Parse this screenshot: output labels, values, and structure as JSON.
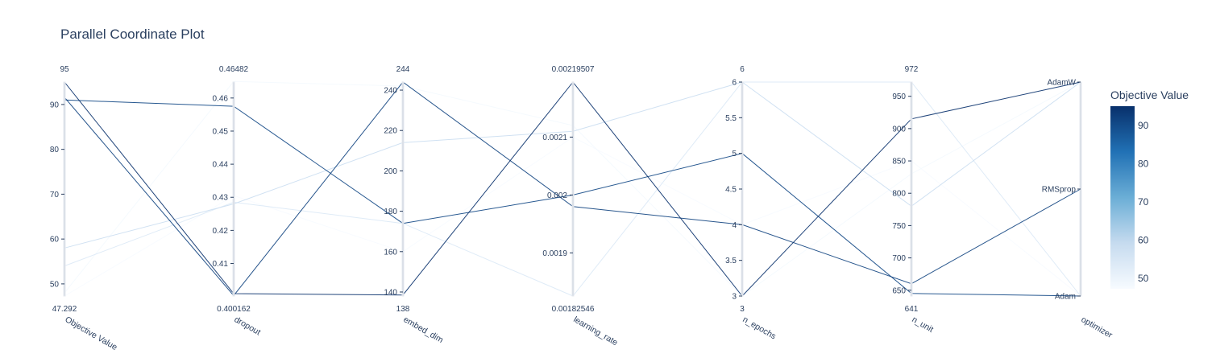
{
  "chart_data": {
    "type": "parallel_coordinates",
    "title": "Parallel Coordinate Plot",
    "colorbar": {
      "title": "Objective Value",
      "range": [
        47.292,
        95
      ],
      "ticks": [
        "50",
        "60",
        "70",
        "80",
        "90"
      ],
      "tick_values": [
        50,
        60,
        70,
        80,
        90
      ],
      "colors": [
        "#f7fbff",
        "#c6dbef",
        "#6baed6",
        "#2171b5",
        "#08306b"
      ]
    },
    "dimensions": [
      {
        "label": "Objective Value",
        "range": [
          47.292,
          95
        ],
        "min_label": "47.292",
        "max_label": "95",
        "ticks": [
          [
            "50",
            50
          ],
          [
            "60",
            60
          ],
          [
            "70",
            70
          ],
          [
            "80",
            80
          ],
          [
            "90",
            90
          ]
        ]
      },
      {
        "label": "dropout",
        "range": [
          0.400162,
          0.46482
        ],
        "min_label": "0.400162",
        "max_label": "0.46482",
        "ticks": [
          [
            "0.41",
            0.41
          ],
          [
            "0.42",
            0.42
          ],
          [
            "0.43",
            0.43
          ],
          [
            "0.44",
            0.44
          ],
          [
            "0.45",
            0.45
          ],
          [
            "0.46",
            0.46
          ]
        ]
      },
      {
        "label": "embed_dim",
        "range": [
          138,
          244
        ],
        "min_label": "138",
        "max_label": "244",
        "ticks": [
          [
            "140",
            140
          ],
          [
            "160",
            160
          ],
          [
            "180",
            180
          ],
          [
            "200",
            200
          ],
          [
            "220",
            220
          ],
          [
            "240",
            240
          ]
        ]
      },
      {
        "label": "learning_rate",
        "range": [
          0.00182546,
          0.00219507
        ],
        "min_label": "0.00182546",
        "max_label": "0.00219507",
        "ticks": [
          [
            "0.0019",
            0.0019
          ],
          [
            "0.002",
            0.002
          ],
          [
            "0.0021",
            0.0021
          ]
        ]
      },
      {
        "label": "n_epochs",
        "range": [
          3,
          6
        ],
        "min_label": "3",
        "max_label": "6",
        "ticks": [
          [
            "3",
            3
          ],
          [
            "3.5",
            3.5
          ],
          [
            "4",
            4
          ],
          [
            "4.5",
            4.5
          ],
          [
            "5",
            5
          ],
          [
            "5.5",
            5.5
          ],
          [
            "6",
            6
          ]
        ]
      },
      {
        "label": "n_unit",
        "range": [
          641,
          972
        ],
        "min_label": "641",
        "max_label": "972",
        "ticks": [
          [
            "650",
            650
          ],
          [
            "700",
            700
          ],
          [
            "750",
            750
          ],
          [
            "800",
            800
          ],
          [
            "850",
            850
          ],
          [
            "900",
            900
          ],
          [
            "950",
            950
          ]
        ]
      },
      {
        "label": "optimizer",
        "range": [
          0,
          2
        ],
        "categorical": true,
        "categories": [
          "Adam",
          "RMSprop",
          "AdamW"
        ]
      }
    ],
    "lines": [
      {
        "values": [
          95,
          0.4009,
          138.5,
          0.00219507,
          3,
          915,
          2
        ]
      },
      {
        "values": [
          91.6,
          0.4003,
          244,
          0.00198,
          4,
          660,
          1
        ]
      },
      {
        "values": [
          91,
          0.4575,
          174,
          0.002,
          5,
          645,
          0
        ]
      },
      {
        "values": [
          58,
          0.428,
          214,
          0.00211,
          6,
          780,
          2
        ]
      },
      {
        "values": [
          54,
          0.4285,
          174,
          0.00182546,
          6,
          972,
          0
        ]
      },
      {
        "values": [
          47.292,
          0.4305,
          160,
          0.0021,
          4,
          850,
          0
        ]
      },
      {
        "values": [
          48,
          0.465,
          242,
          0.00212,
          3,
          830,
          2
        ]
      }
    ]
  }
}
